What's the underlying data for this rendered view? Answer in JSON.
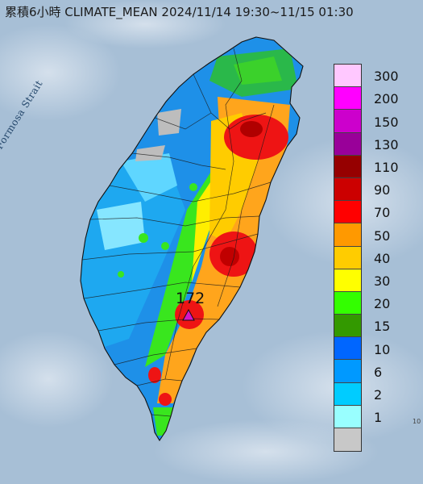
{
  "title": "累積6小時 CLIMATE_MEAN 2024/11/14 19:30~11/15 01:30",
  "sea_label": "Formosa Strait",
  "max_station": {
    "value": "172",
    "marker": "triangle-icon",
    "color": "#d417c8"
  },
  "corner_note": "10",
  "legend": {
    "unit_hint": "mm",
    "items": [
      {
        "label": "300",
        "color": "#ffc8ff"
      },
      {
        "label": "200",
        "color": "#ff00ff"
      },
      {
        "label": "150",
        "color": "#cc00cc"
      },
      {
        "label": "130",
        "color": "#990099"
      },
      {
        "label": "110",
        "color": "#960000"
      },
      {
        "label": "90",
        "color": "#cc0000"
      },
      {
        "label": "70",
        "color": "#ff0000"
      },
      {
        "label": "50",
        "color": "#ff9900"
      },
      {
        "label": "40",
        "color": "#ffcc00"
      },
      {
        "label": "30",
        "color": "#ffff00"
      },
      {
        "label": "20",
        "color": "#33ff00"
      },
      {
        "label": "15",
        "color": "#339900"
      },
      {
        "label": "10",
        "color": "#0066ff"
      },
      {
        "label": "6",
        "color": "#0099ff"
      },
      {
        "label": "2",
        "color": "#00ccff"
      },
      {
        "label": "1",
        "color": "#99ffff"
      },
      {
        "label": "",
        "color": "#c8c8c8"
      }
    ]
  }
}
